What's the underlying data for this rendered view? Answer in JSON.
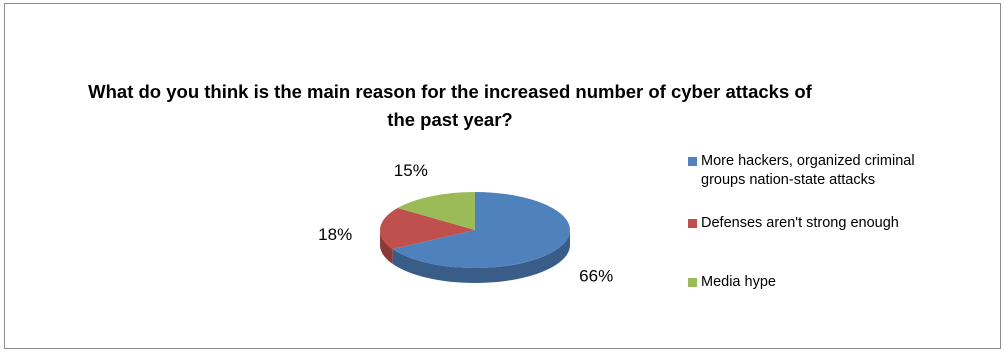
{
  "chart_data": {
    "type": "pie",
    "title_lines": [
      "What do you think is the main reason for the increased number of cyber attacks of",
      "the past year?"
    ],
    "slices": [
      {
        "label_lines": [
          "More hackers, organized criminal",
          "groups nation-state attacks"
        ],
        "value": 66,
        "display": "66%",
        "color": "#4f81bd"
      },
      {
        "label_lines": [
          "Defenses aren't strong enough"
        ],
        "value": 18,
        "display": "18%",
        "color": "#c0504d"
      },
      {
        "label_lines": [
          "Media hype"
        ],
        "value": 15,
        "display": "15%",
        "color": "#9bbb59"
      }
    ],
    "legend_position": "right",
    "style": "3d-pie"
  }
}
